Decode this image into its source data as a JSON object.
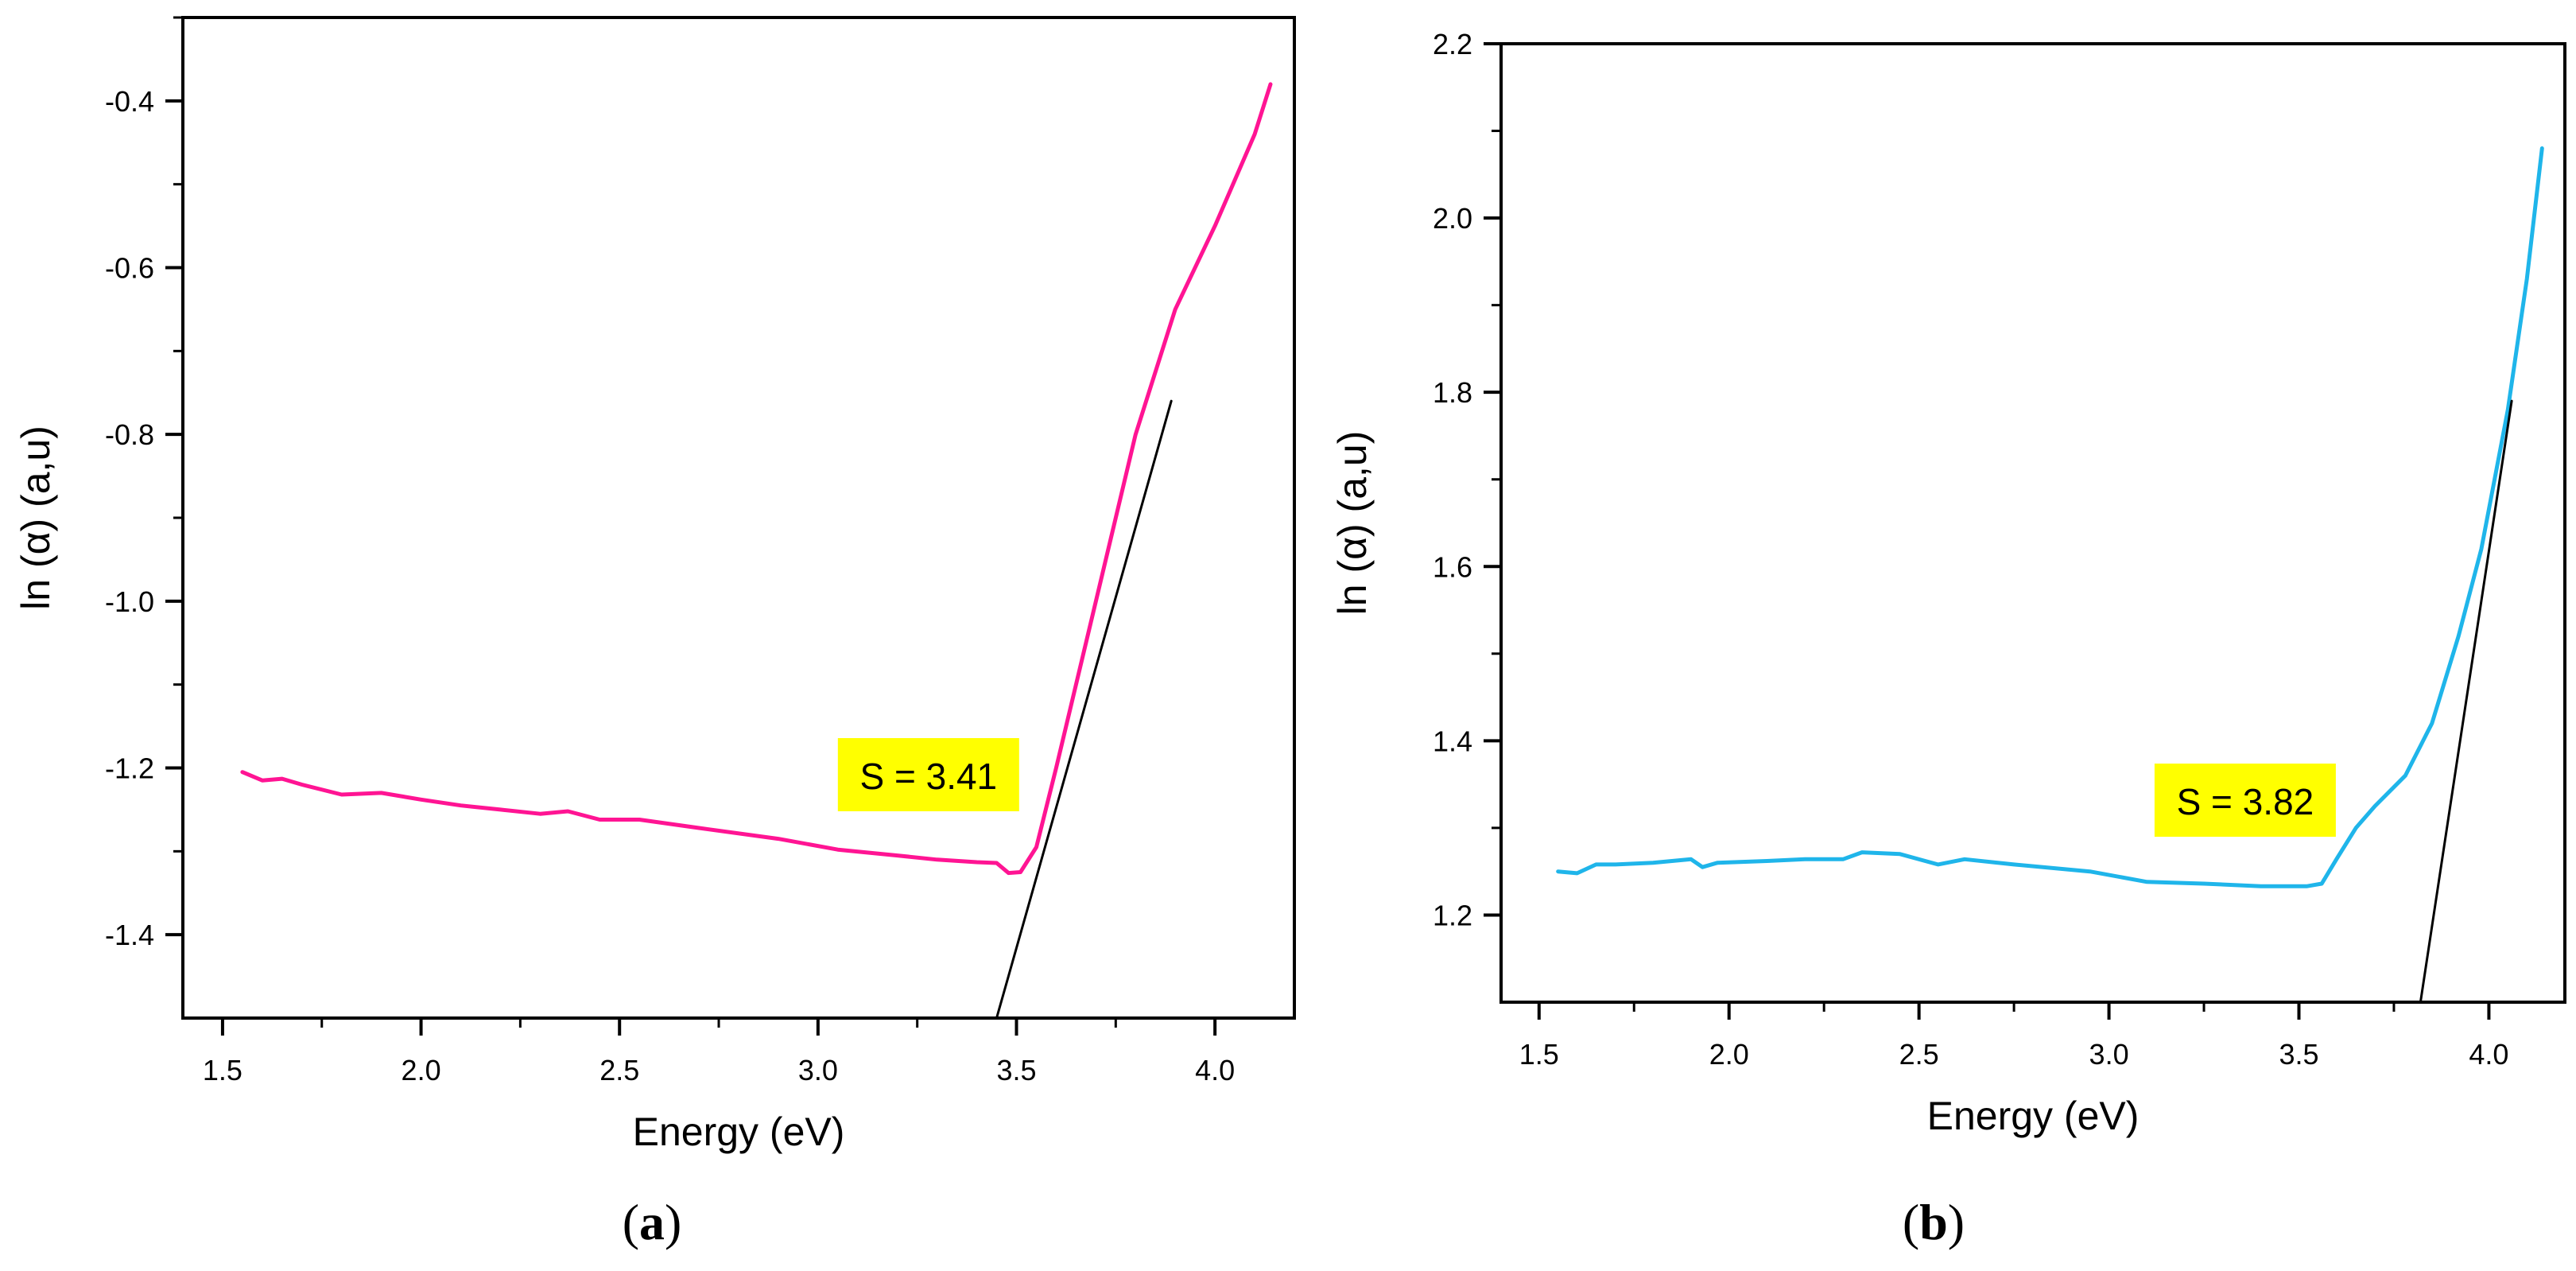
{
  "chart_data": [
    {
      "type": "line",
      "panel_label": "a",
      "xlabel": "Energy (eV)",
      "ylabel": "ln (α) (a,u)",
      "xlim": [
        1.4,
        4.2
      ],
      "ylim": [
        -1.5,
        -0.3
      ],
      "xticks": [
        1.5,
        2.0,
        2.5,
        3.0,
        3.5,
        4.0
      ],
      "xtick_labels": [
        "1.5",
        "2.0",
        "2.5",
        "3.0",
        "3.5",
        "4.0"
      ],
      "yticks": [
        -1.4,
        -1.2,
        -1.0,
        -0.8,
        -0.6,
        -0.4
      ],
      "ytick_labels": [
        "-1.4",
        "-1.2",
        "-1.0",
        "-0.8",
        "-0.6",
        "-0.4"
      ],
      "series": [
        {
          "name": "ln(alpha)",
          "color": "#ff1493",
          "x": [
            1.55,
            1.6,
            1.65,
            1.7,
            1.8,
            1.9,
            2.0,
            2.1,
            2.2,
            2.3,
            2.37,
            2.45,
            2.55,
            2.7,
            2.9,
            3.05,
            3.2,
            3.3,
            3.4,
            3.45,
            3.48,
            3.51,
            3.55,
            3.6,
            3.7,
            3.8,
            3.9,
            4.0,
            4.1,
            4.14
          ],
          "y": [
            -1.205,
            -1.215,
            -1.213,
            -1.22,
            -1.232,
            -1.23,
            -1.238,
            -1.245,
            -1.25,
            -1.255,
            -1.252,
            -1.262,
            -1.262,
            -1.272,
            -1.285,
            -1.298,
            -1.305,
            -1.31,
            -1.313,
            -1.314,
            -1.326,
            -1.325,
            -1.295,
            -1.2,
            -1.0,
            -0.8,
            -0.65,
            -0.55,
            -0.44,
            -0.38
          ]
        },
        {
          "name": "tangent",
          "color": "#000000",
          "x": [
            3.45,
            3.89
          ],
          "y": [
            -1.5,
            -0.76
          ]
        }
      ],
      "annotation": {
        "text": "S = 3.41",
        "x": 3.05,
        "y": -1.21,
        "background": "#ffff00"
      }
    },
    {
      "type": "line",
      "panel_label": "b",
      "xlabel": "Energy (eV)",
      "ylabel": "ln (α) (a,u)",
      "xlim": [
        1.4,
        4.2
      ],
      "ylim": [
        1.1,
        2.2
      ],
      "xticks": [
        1.5,
        2.0,
        2.5,
        3.0,
        3.5,
        4.0
      ],
      "xtick_labels": [
        "1.5",
        "2.0",
        "2.5",
        "3.0",
        "3.5",
        "4.0"
      ],
      "yticks": [
        1.2,
        1.4,
        1.6,
        1.8,
        2.0,
        2.2
      ],
      "ytick_labels": [
        "1.2",
        "1.4",
        "1.6",
        "1.8",
        "2.0",
        "2.2"
      ],
      "series": [
        {
          "name": "ln(alpha)",
          "color": "#1fb5ea",
          "x": [
            1.55,
            1.6,
            1.65,
            1.7,
            1.8,
            1.9,
            1.93,
            1.97,
            2.1,
            2.2,
            2.3,
            2.35,
            2.45,
            2.55,
            2.62,
            2.75,
            2.95,
            3.1,
            3.25,
            3.4,
            3.52,
            3.56,
            3.6,
            3.65,
            3.7,
            3.78,
            3.85,
            3.92,
            3.98,
            4.05,
            4.1,
            4.14
          ],
          "y": [
            1.25,
            1.248,
            1.258,
            1.258,
            1.26,
            1.264,
            1.255,
            1.26,
            1.262,
            1.264,
            1.264,
            1.272,
            1.27,
            1.258,
            1.264,
            1.258,
            1.25,
            1.238,
            1.236,
            1.233,
            1.233,
            1.236,
            1.265,
            1.3,
            1.325,
            1.36,
            1.42,
            1.52,
            1.62,
            1.78,
            1.93,
            2.08
          ]
        },
        {
          "name": "tangent",
          "color": "#000000",
          "x": [
            3.82,
            4.06
          ],
          "y": [
            1.1,
            1.79
          ]
        }
      ],
      "annotation": {
        "text": "S = 3.82",
        "x": 3.12,
        "y": 1.33,
        "background": "#ffff00"
      }
    }
  ],
  "captions": [
    {
      "open": "(",
      "label": "a",
      "close": ")"
    },
    {
      "open": "(",
      "label": "b",
      "close": ")"
    }
  ]
}
